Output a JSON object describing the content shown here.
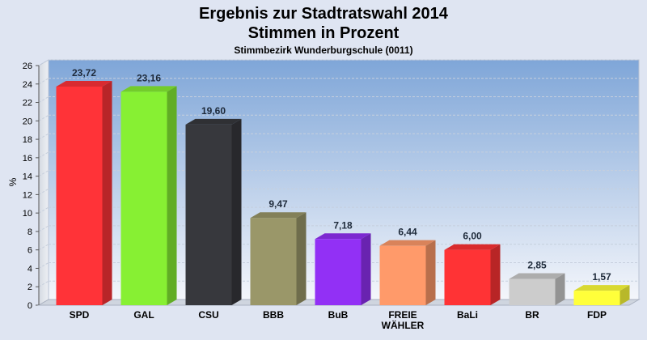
{
  "chart_data": {
    "type": "bar",
    "title": "Ergebnis zur Stadtratswahl 2014",
    "title2": "Stimmen in Prozent",
    "subtitle": "Stimmbezirk Wunderburgschule (0011)",
    "ylabel": "%",
    "ylim": [
      0,
      26
    ],
    "yticks": [
      0,
      2,
      4,
      6,
      8,
      10,
      12,
      14,
      16,
      18,
      20,
      22,
      24,
      26
    ],
    "grid": true,
    "categories": [
      "SPD",
      "GAL",
      "CSU",
      "BBB",
      "BuB",
      "FREIE WÄHLER",
      "BaLi",
      "BR",
      "FDP"
    ],
    "category_lines": [
      [
        "SPD"
      ],
      [
        "GAL"
      ],
      [
        "CSU"
      ],
      [
        "BBB"
      ],
      [
        "BuB"
      ],
      [
        "FREIE",
        "WÄHLER"
      ],
      [
        "BaLi"
      ],
      [
        "BR"
      ],
      [
        "FDP"
      ]
    ],
    "values": [
      23.72,
      23.16,
      19.6,
      9.47,
      7.18,
      6.44,
      6.0,
      2.85,
      1.57
    ],
    "value_labels": [
      "23,72",
      "23,16",
      "19,60",
      "9,47",
      "7,18",
      "6,44",
      "6,00",
      "2,85",
      "1,57"
    ],
    "colors": [
      "#ff3338",
      "#87f033",
      "#37383d",
      "#9a9769",
      "#9230f5",
      "#ff9a6a",
      "#ff3335",
      "#cccccc",
      "#ffff3a"
    ]
  }
}
